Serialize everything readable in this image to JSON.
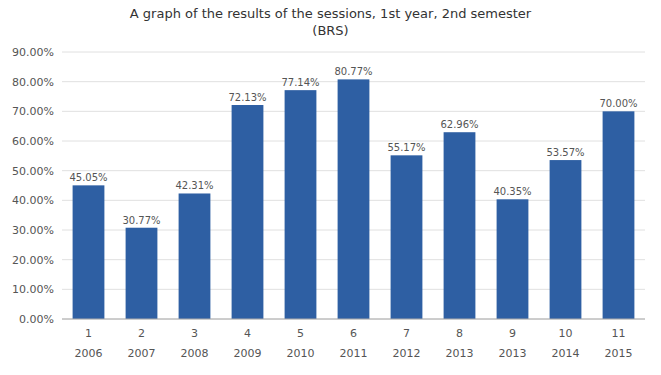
{
  "chart_data": {
    "type": "bar",
    "title": "A graph of the results of the sessions, 1st year, 2nd semester\n(BRS)",
    "categories": [
      "1",
      "2",
      "3",
      "4",
      "5",
      "6",
      "7",
      "8",
      "9",
      "10",
      "11"
    ],
    "annotations": [
      "2006",
      "2007",
      "2008",
      "2009",
      "2010",
      "2011",
      "2012",
      "2013",
      "2013",
      "2014",
      "2015"
    ],
    "values": [
      0.4505,
      0.3077,
      0.4231,
      0.7213,
      0.7714,
      0.8077,
      0.5517,
      0.6296,
      0.4035,
      0.5357,
      0.7
    ],
    "value_labels": [
      "45.05%",
      "30.77%",
      "42.31%",
      "72.13%",
      "77.14%",
      "80.77%",
      "55.17%",
      "62.96%",
      "40.35%",
      "53.57%",
      "70.00%"
    ],
    "data_labels": true,
    "color": "#2E5FA3",
    "ylim": [
      0,
      0.9
    ],
    "yticks": [
      {
        "value": 0.0,
        "label": "0.00%"
      },
      {
        "value": 0.1,
        "label": "10.00%"
      },
      {
        "value": 0.2,
        "label": "20.00%"
      },
      {
        "value": 0.3,
        "label": "30.00%"
      },
      {
        "value": 0.4,
        "label": "40.00%"
      },
      {
        "value": 0.5,
        "label": "50.00%"
      },
      {
        "value": 0.6,
        "label": "60.00%"
      },
      {
        "value": 0.7,
        "label": "70.00%"
      },
      {
        "value": 0.8,
        "label": "80.00%"
      },
      {
        "value": 0.9,
        "label": "90.00%"
      }
    ],
    "grid": true
  }
}
